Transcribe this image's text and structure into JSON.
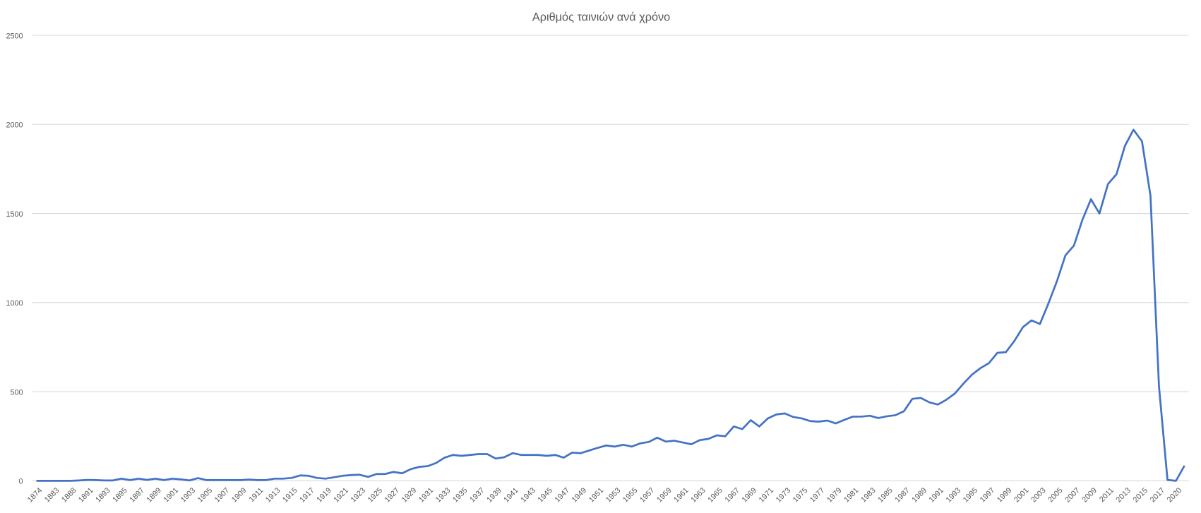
{
  "chart_data": {
    "type": "line",
    "title": "Αριθμός ταινιών ανά χρόνο",
    "categories": [
      1874,
      null,
      1883,
      null,
      1888,
      null,
      1891,
      null,
      1893,
      null,
      1895,
      null,
      1897,
      null,
      1899,
      null,
      1901,
      null,
      1903,
      null,
      1905,
      null,
      1907,
      null,
      1909,
      null,
      1911,
      null,
      1913,
      null,
      1915,
      null,
      1917,
      null,
      1919,
      null,
      1921,
      null,
      1923,
      null,
      1925,
      null,
      1927,
      null,
      1929,
      null,
      1931,
      null,
      1933,
      null,
      1935,
      null,
      1937,
      null,
      1939,
      null,
      1941,
      null,
      1943,
      null,
      1945,
      null,
      1947,
      null,
      1949,
      null,
      1951,
      null,
      1953,
      null,
      1955,
      null,
      1957,
      null,
      1959,
      null,
      1961,
      null,
      1963,
      null,
      1965,
      null,
      1967,
      null,
      1969,
      null,
      1971,
      null,
      1973,
      null,
      1975,
      null,
      1977,
      null,
      1979,
      null,
      1981,
      null,
      1983,
      null,
      1985,
      null,
      1987,
      null,
      1989,
      null,
      1991,
      null,
      1993,
      null,
      1995,
      null,
      1997,
      null,
      1999,
      null,
      2001,
      null,
      2003,
      null,
      2005,
      null,
      2007,
      null,
      2009,
      null,
      2011,
      null,
      2013,
      null,
      2015,
      null,
      2017,
      null,
      2020,
      null
    ],
    "series": [
      {
        "name": "Αριθμός ταινιών",
        "color": "#4472c4",
        "values": [
          0,
          0,
          0,
          0,
          0,
          2,
          5,
          4,
          2,
          2,
          12,
          4,
          12,
          5,
          12,
          4,
          12,
          8,
          2,
          15,
          4,
          4,
          4,
          4,
          4,
          7,
          4,
          4,
          12,
          12,
          16,
          30,
          28,
          16,
          12,
          20,
          28,
          32,
          34,
          22,
          38,
          38,
          50,
          42,
          65,
          78,
          82,
          100,
          130,
          145,
          140,
          145,
          150,
          150,
          125,
          132,
          155,
          145,
          145,
          145,
          140,
          145,
          130,
          158,
          155,
          170,
          185,
          198,
          192,
          202,
          192,
          210,
          218,
          242,
          220,
          225,
          215,
          205,
          228,
          235,
          255,
          250,
          305,
          290,
          340,
          305,
          350,
          372,
          378,
          358,
          350,
          335,
          332,
          338,
          322,
          342,
          360,
          360,
          365,
          352,
          362,
          368,
          390,
          460,
          465,
          440,
          428,
          455,
          490,
          545,
          595,
          632,
          660,
          718,
          722,
          785,
          862,
          900,
          880,
          995,
          1120,
          1265,
          1320,
          1465,
          1580,
          1500,
          1665,
          1720,
          1880,
          1970,
          1905,
          1600,
          530,
          5,
          0,
          85
        ]
      }
    ],
    "ylim": [
      0,
      2500
    ],
    "yticks": [
      0,
      500,
      1000,
      1500,
      2000,
      2500
    ],
    "grid": true
  }
}
